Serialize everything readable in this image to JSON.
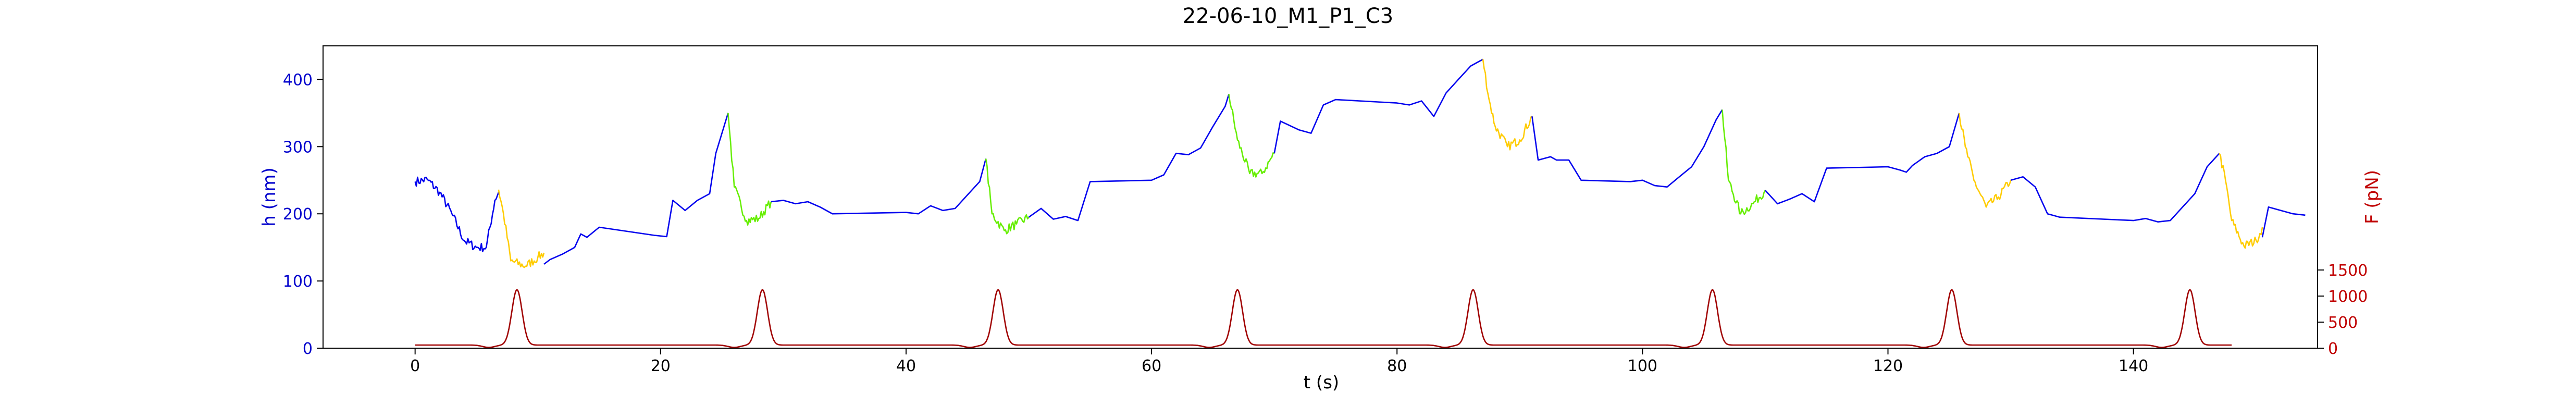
{
  "chart_data": {
    "type": "line",
    "title": "22-06-10_M1_P1_C3",
    "xlabel": "t (s)",
    "ylabel_left": "h (nm)",
    "ylabel_right": "F (pN)",
    "xlim": [
      -7.5,
      155
    ],
    "ylim_left": [
      0,
      450
    ],
    "ylim_right": [
      0,
      5800
    ],
    "x_ticks": [
      0,
      20,
      40,
      60,
      80,
      100,
      120,
      140
    ],
    "y_ticks_left": [
      0,
      100,
      200,
      300,
      400
    ],
    "y_ticks_right": [
      0,
      500,
      1000,
      1500
    ],
    "grid": false,
    "colors": {
      "h_series": "#0000ee",
      "f_series": "#a00000",
      "left_axis_text": "#0000cc",
      "right_axis_text": "#c00000",
      "yellow_segment": "#ffcc00",
      "green_segment": "#66ee00",
      "axis": "#000000"
    },
    "series": [
      {
        "axis": "left",
        "color": "#0000ee",
        "segments": [
          {
            "color": "#0000ee",
            "noise": 1,
            "points": [
              [
                0,
                248
              ],
              [
                1,
                251
              ],
              [
                2,
                232
              ],
              [
                3,
                200
              ],
              [
                4,
                160
              ],
              [
                5,
                150
              ],
              [
                5.8,
                150
              ],
              [
                6.5,
                220
              ],
              [
                6.8,
                232
              ]
            ]
          },
          {
            "color": "#ffcc00",
            "noise": 1,
            "points": [
              [
                6.8,
                236
              ],
              [
                7.2,
                200
              ],
              [
                7.8,
                130
              ],
              [
                9,
                122
              ],
              [
                10,
                135
              ],
              [
                10.5,
                142
              ]
            ]
          },
          {
            "color": "#0000ee",
            "noise": 0,
            "points": [
              [
                10.5,
                125
              ],
              [
                11,
                132
              ],
              [
                12,
                140
              ],
              [
                13,
                150
              ],
              [
                13.5,
                170
              ],
              [
                14,
                165
              ],
              [
                15,
                180
              ],
              [
                19.5,
                168
              ],
              [
                20.5,
                166
              ],
              [
                21,
                220
              ],
              [
                22,
                205
              ],
              [
                23,
                220
              ],
              [
                24,
                230
              ],
              [
                24.5,
                290
              ],
              [
                25.5,
                350
              ]
            ]
          },
          {
            "color": "#66ee00",
            "noise": 1,
            "points": [
              [
                25.5,
                350
              ],
              [
                26,
                240
              ],
              [
                27,
                190
              ],
              [
                28,
                193
              ],
              [
                29,
                218
              ]
            ]
          },
          {
            "color": "#0000ee",
            "noise": 0,
            "points": [
              [
                29,
                218
              ],
              [
                30,
                220
              ],
              [
                31,
                215
              ],
              [
                32,
                218
              ],
              [
                33,
                210
              ],
              [
                34,
                200
              ],
              [
                40,
                202
              ],
              [
                41,
                200
              ],
              [
                42,
                212
              ],
              [
                43,
                205
              ],
              [
                44,
                208
              ],
              [
                45,
                228
              ],
              [
                46,
                248
              ],
              [
                46.5,
                282
              ]
            ]
          },
          {
            "color": "#66ee00",
            "noise": 1,
            "points": [
              [
                46.5,
                282
              ],
              [
                47,
                200
              ],
              [
                48,
                175
              ],
              [
                49,
                185
              ],
              [
                50,
                195
              ]
            ]
          },
          {
            "color": "#0000ee",
            "noise": 0,
            "points": [
              [
                50,
                195
              ],
              [
                51,
                208
              ],
              [
                52,
                192
              ],
              [
                53,
                196
              ],
              [
                54,
                190
              ],
              [
                55,
                248
              ],
              [
                60,
                250
              ],
              [
                61,
                258
              ],
              [
                62,
                290
              ],
              [
                63,
                288
              ],
              [
                64,
                298
              ],
              [
                65,
                330
              ],
              [
                66,
                360
              ],
              [
                66.3,
                378
              ]
            ]
          },
          {
            "color": "#66ee00",
            "noise": 1,
            "points": [
              [
                66.3,
                378
              ],
              [
                67,
                310
              ],
              [
                68,
                260
              ],
              [
                69,
                260
              ],
              [
                70,
                290
              ]
            ]
          },
          {
            "color": "#0000ee",
            "noise": 0,
            "points": [
              [
                70,
                290
              ],
              [
                70.5,
                338
              ],
              [
                72,
                325
              ],
              [
                73,
                320
              ],
              [
                74,
                362
              ],
              [
                75,
                370
              ],
              [
                80,
                365
              ],
              [
                81,
                362
              ],
              [
                82,
                368
              ],
              [
                83,
                345
              ],
              [
                84,
                380
              ],
              [
                85,
                400
              ],
              [
                86,
                420
              ],
              [
                87,
                430
              ]
            ]
          },
          {
            "color": "#ffcc00",
            "noise": 1,
            "points": [
              [
                87,
                430
              ],
              [
                87.5,
                370
              ],
              [
                88,
                330
              ],
              [
                89,
                300
              ],
              [
                90,
                310
              ],
              [
                91,
                345
              ]
            ]
          },
          {
            "color": "#0000ee",
            "noise": 0,
            "points": [
              [
                91,
                345
              ],
              [
                91.5,
                280
              ],
              [
                92.5,
                285
              ],
              [
                93,
                280
              ],
              [
                94,
                280
              ],
              [
                95,
                250
              ],
              [
                99,
                248
              ],
              [
                100,
                250
              ],
              [
                101,
                242
              ],
              [
                102,
                240
              ],
              [
                103,
                255
              ],
              [
                104,
                270
              ],
              [
                105,
                300
              ],
              [
                106,
                340
              ],
              [
                106.5,
                355
              ]
            ]
          },
          {
            "color": "#66ee00",
            "noise": 1,
            "points": [
              [
                106.5,
                355
              ],
              [
                107,
                250
              ],
              [
                108,
                200
              ],
              [
                109,
                215
              ],
              [
                110,
                235
              ]
            ]
          },
          {
            "color": "#0000ee",
            "noise": 0,
            "points": [
              [
                110,
                235
              ],
              [
                111,
                215
              ],
              [
                112,
                222
              ],
              [
                113,
                230
              ],
              [
                114,
                218
              ],
              [
                115,
                268
              ],
              [
                120,
                270
              ],
              [
                121,
                265
              ],
              [
                121.5,
                262
              ],
              [
                122,
                272
              ],
              [
                123,
                285
              ],
              [
                124,
                290
              ],
              [
                125,
                300
              ],
              [
                125.8,
                350
              ]
            ]
          },
          {
            "color": "#ffcc00",
            "noise": 1,
            "points": [
              [
                125.8,
                350
              ],
              [
                126.3,
                300
              ],
              [
                127,
                250
              ],
              [
                128,
                210
              ],
              [
                129,
                225
              ],
              [
                130,
                250
              ]
            ]
          },
          {
            "color": "#0000ee",
            "noise": 0,
            "points": [
              [
                130,
                250
              ],
              [
                131,
                255
              ],
              [
                132,
                240
              ],
              [
                133,
                200
              ],
              [
                134,
                195
              ],
              [
                140,
                190
              ],
              [
                141,
                193
              ],
              [
                142,
                188
              ],
              [
                143,
                190
              ],
              [
                144,
                210
              ],
              [
                145,
                230
              ],
              [
                146,
                270
              ],
              [
                147,
                290
              ]
            ]
          },
          {
            "color": "#ffcc00",
            "noise": 1,
            "points": [
              [
                147,
                290
              ],
              [
                147.5,
                250
              ],
              [
                148,
                190
              ],
              [
                149,
                152
              ],
              [
                150,
                160
              ],
              [
                150.5,
                180
              ]
            ]
          },
          {
            "color": "#0000ee",
            "noise": 0,
            "points": [
              [
                150.5,
                165
              ],
              [
                151,
                210
              ],
              [
                152,
                205
              ],
              [
                153,
                200
              ],
              [
                154,
                198
              ]
            ]
          }
        ]
      },
      {
        "axis": "right",
        "color": "#a00000",
        "baseline": 60,
        "peak": 1060,
        "peaks_t": [
          8.3,
          28.3,
          47.5,
          67.0,
          86.2,
          105.7,
          125.2,
          144.6
        ],
        "x_range": [
          0,
          148
        ]
      }
    ]
  }
}
